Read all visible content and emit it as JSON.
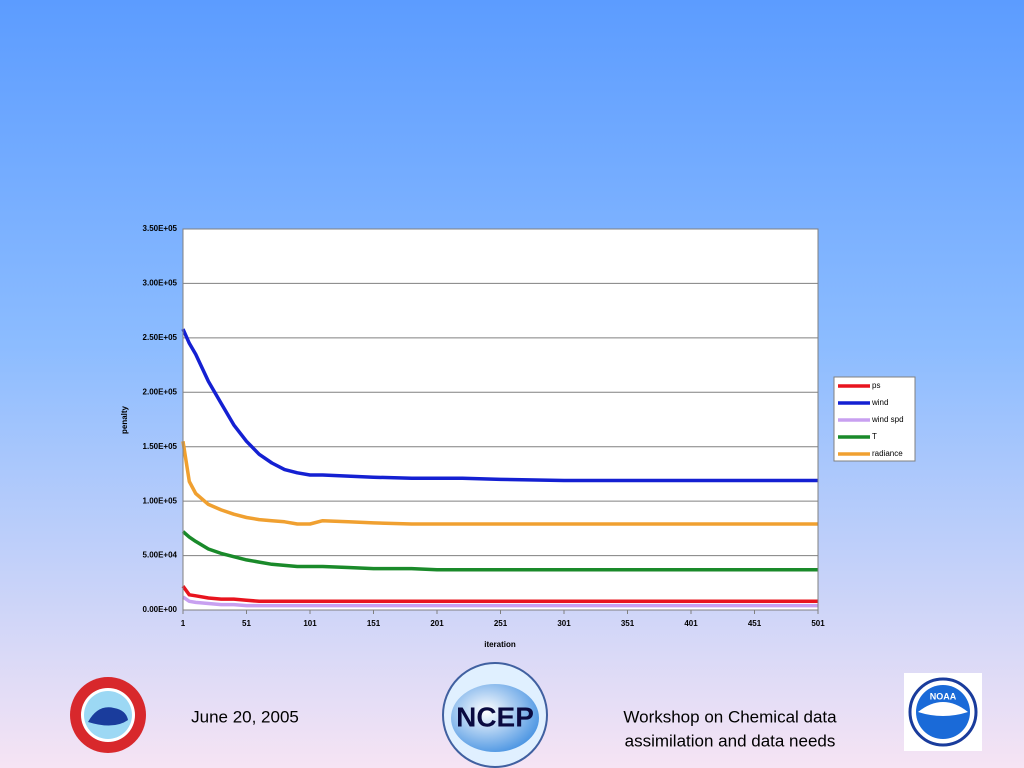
{
  "chart_data": {
    "type": "line",
    "xlabel": "iteration",
    "ylabel": "penalty",
    "x": [
      1,
      6,
      11,
      21,
      31,
      41,
      51,
      61,
      71,
      81,
      91,
      101,
      111,
      131,
      151,
      181,
      201,
      221,
      251,
      301,
      351,
      401,
      451,
      501
    ],
    "series": [
      {
        "name": "ps",
        "color": "#e8141e",
        "values": [
          22000,
          14000,
          13000,
          11000,
          10000,
          10000,
          9000,
          8000,
          8000,
          8000,
          8000,
          8000,
          8000,
          8000,
          8000,
          8000,
          8000,
          8000,
          8000,
          8000,
          8000,
          8000,
          8000,
          8000
        ]
      },
      {
        "name": "wind",
        "color": "#1420d2",
        "values": [
          258000,
          245000,
          235000,
          210000,
          190000,
          170000,
          155000,
          143000,
          135000,
          129000,
          126000,
          124000,
          124000,
          123000,
          122000,
          121000,
          121000,
          121000,
          120000,
          119000,
          119000,
          119000,
          119000,
          119000
        ]
      },
      {
        "name": "wind spd",
        "color": "#c8a0f0",
        "values": [
          12000,
          8000,
          7000,
          6000,
          5000,
          5000,
          4000,
          4000,
          4000,
          4000,
          4000,
          4000,
          4000,
          4000,
          4000,
          4000,
          4000,
          4000,
          4000,
          4000,
          4000,
          4000,
          4000,
          4000
        ]
      },
      {
        "name": "T",
        "color": "#1a8a2a",
        "values": [
          72000,
          67000,
          63000,
          56000,
          52000,
          49000,
          46000,
          44000,
          42000,
          41000,
          40000,
          40000,
          40000,
          39000,
          38000,
          38000,
          37000,
          37000,
          37000,
          37000,
          37000,
          37000,
          37000,
          37000
        ]
      },
      {
        "name": "radiance",
        "color": "#f0a030",
        "values": [
          155000,
          118000,
          107000,
          97000,
          92000,
          88000,
          85000,
          83000,
          82000,
          81000,
          79000,
          79000,
          82000,
          81000,
          80000,
          79000,
          79000,
          79000,
          79000,
          79000,
          79000,
          79000,
          79000,
          79000
        ]
      }
    ],
    "xlim": [
      1,
      501
    ],
    "xticks": [
      1,
      51,
      101,
      151,
      201,
      251,
      301,
      351,
      401,
      451,
      501
    ],
    "ylim": [
      0,
      350000
    ],
    "yticks": [
      {
        "value": 0,
        "label": "0.00E+00"
      },
      {
        "value": 50000,
        "label": "5.00E+04"
      },
      {
        "value": 100000,
        "label": "1.00E+05"
      },
      {
        "value": 150000,
        "label": "1.50E+05"
      },
      {
        "value": 200000,
        "label": "2.00E+05"
      },
      {
        "value": 250000,
        "label": "2.50E+05"
      },
      {
        "value": 300000,
        "label": "3.00E+05"
      },
      {
        "value": 350000,
        "label": "3.50E+05"
      }
    ],
    "grid": true,
    "legend": "right"
  },
  "footer": {
    "date": "June 20, 2005",
    "workshop": [
      "Workshop on Chemical data",
      "assimilation and data needs"
    ],
    "ncep": "NCEP",
    "noaa": "NOAA"
  }
}
